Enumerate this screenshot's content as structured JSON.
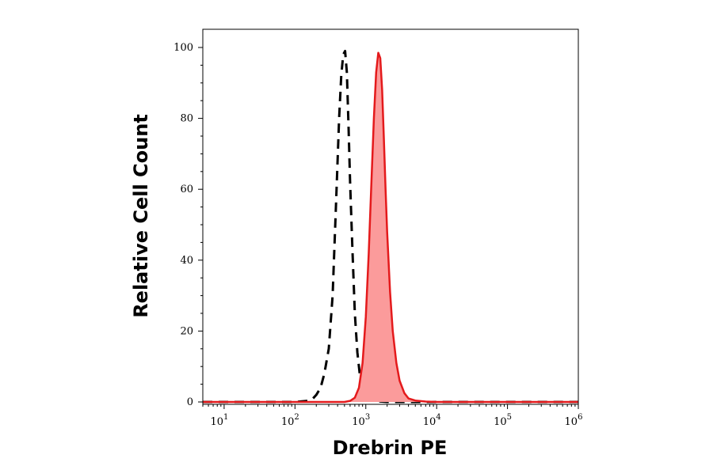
{
  "chart_data": {
    "type": "area",
    "xlabel": "Drebrin PE",
    "ylabel": "Relative Cell Count",
    "x_scale": "log",
    "xlim": [
      5,
      1000000
    ],
    "ylim": [
      0,
      100
    ],
    "y_ticks": [
      "0",
      "20",
      "40",
      "60",
      "80",
      "100"
    ],
    "x_ticks": [
      {
        "base": "10",
        "exp": "1"
      },
      {
        "base": "10",
        "exp": "2"
      },
      {
        "base": "10",
        "exp": "3"
      },
      {
        "base": "10",
        "exp": "4"
      },
      {
        "base": "10",
        "exp": "5"
      },
      {
        "base": "10",
        "exp": "6"
      }
    ],
    "grid": false,
    "series": [
      {
        "style": "dashed",
        "color": "#000000",
        "filled": false,
        "x": [
          5,
          100,
          150,
          180,
          200,
          230,
          260,
          300,
          340,
          380,
          420,
          450,
          480,
          510,
          540,
          570,
          600,
          650,
          700,
          760,
          820,
          880,
          950,
          1050,
          1200,
          1500,
          2000,
          1000000
        ],
        "y": [
          0,
          0,
          0.3,
          1,
          2,
          4,
          8,
          15,
          30,
          56,
          80,
          92,
          98,
          99,
          93,
          78,
          62,
          42,
          25,
          14,
          8,
          5,
          3,
          1.5,
          0.6,
          0.2,
          0,
          0
        ]
      },
      {
        "style": "solid",
        "color": "#e41a1c",
        "fill": "#fb9b9b",
        "filled": true,
        "x": [
          5,
          500,
          600,
          700,
          800,
          900,
          1000,
          1100,
          1200,
          1300,
          1400,
          1500,
          1600,
          1700,
          1800,
          1900,
          2000,
          2200,
          2400,
          2700,
          3000,
          3500,
          4000,
          5000,
          7000,
          10000,
          1000000
        ],
        "y": [
          0,
          0,
          0.3,
          1.2,
          4,
          11,
          24,
          42,
          62,
          80,
          93,
          98.5,
          97,
          88,
          74,
          60,
          48,
          31,
          20,
          11,
          6,
          2.5,
          1,
          0.4,
          0.1,
          0,
          0
        ]
      }
    ]
  }
}
